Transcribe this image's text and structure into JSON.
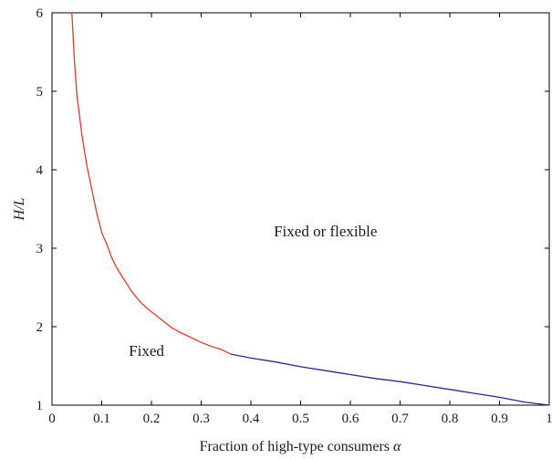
{
  "chart_data": {
    "type": "line",
    "xlabel": "Fraction of high-type consumers",
    "xlabel_symbol": "α",
    "ylabel": "H/L",
    "xlim": [
      0,
      1
    ],
    "ylim": [
      1,
      6
    ],
    "xticks": [
      "0",
      "0.1",
      "0.2",
      "0.3",
      "0.4",
      "0.5",
      "0.6",
      "0.7",
      "0.8",
      "0.9",
      "1"
    ],
    "yticks": [
      "1",
      "2",
      "3",
      "4",
      "5",
      "6"
    ],
    "grid": false,
    "annotations": [
      {
        "text": "Fixed or flexible",
        "x": 0.55,
        "y": 3.15
      },
      {
        "text": "Fixed",
        "x": 0.19,
        "y": 1.63
      }
    ],
    "series": [
      {
        "color": "#e8372a",
        "x": [
          0.04,
          0.045,
          0.05,
          0.06,
          0.07,
          0.08,
          0.09,
          0.1,
          0.11,
          0.12,
          0.13,
          0.14,
          0.15,
          0.16,
          0.17,
          0.18,
          0.19,
          0.2,
          0.22,
          0.24,
          0.26,
          0.28,
          0.3,
          0.32,
          0.34,
          0.36
        ],
        "y": [
          6.0,
          5.4,
          4.95,
          4.45,
          4.05,
          3.75,
          3.45,
          3.2,
          3.05,
          2.88,
          2.75,
          2.65,
          2.55,
          2.45,
          2.37,
          2.3,
          2.24,
          2.19,
          2.09,
          1.99,
          1.92,
          1.86,
          1.8,
          1.75,
          1.71,
          1.65
        ]
      },
      {
        "color": "#2a2a8c",
        "x": [
          0.36,
          0.4,
          0.45,
          0.5,
          0.55,
          0.6,
          0.65,
          0.7,
          0.75,
          0.8,
          0.85,
          0.9,
          0.95,
          1.0
        ],
        "y": [
          1.65,
          1.6,
          1.55,
          1.49,
          1.44,
          1.39,
          1.34,
          1.3,
          1.25,
          1.2,
          1.15,
          1.1,
          1.04,
          1.0
        ]
      }
    ]
  }
}
